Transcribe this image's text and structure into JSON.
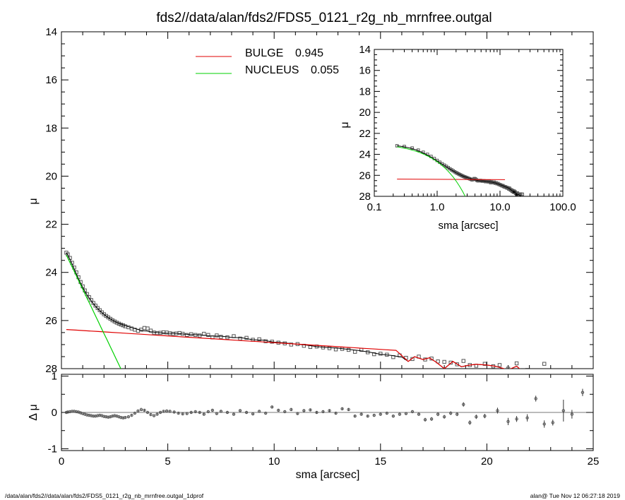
{
  "title": "fds2//data/alan/fds2/FDS5_0121_r2g_nb_mrnfree.outgal",
  "footer": {
    "left": "/data/alan/fds2//data/alan/fds2/FDS5_0121_r2g_nb_mrnfree.outgal_1dprof",
    "right": "alan@  Tue Nov 12 06:27:18 2019"
  },
  "colors": {
    "bulge": "#e00000",
    "nucleus": "#00d000",
    "data": "#555555"
  },
  "chart_data": [
    {
      "type": "scatter",
      "name": "main",
      "xlabel": "",
      "ylabel": "μ",
      "xlim": [
        0,
        25
      ],
      "ylim": [
        28,
        14
      ],
      "yticks": [
        "14",
        "16",
        "18",
        "20",
        "22",
        "24",
        "26",
        "28"
      ],
      "legend": [
        {
          "label": "BULGE",
          "value": "0.945",
          "color": "#e00000"
        },
        {
          "label": "NUCLEUS",
          "value": "0.055",
          "color": "#00d000"
        }
      ],
      "components": {
        "bulge_sersic": {
          "mu0": 26.36,
          "slope_per_arcsec": 0.056
        },
        "nucleus_exp": {
          "mu0": 22.85,
          "slope_per_arcsec": 1.845
        }
      },
      "observed_points": [
        [
          0.23,
          23.18
        ],
        [
          0.3,
          23.25
        ],
        [
          0.4,
          23.4
        ],
        [
          0.5,
          23.6
        ],
        [
          0.6,
          23.8
        ],
        [
          0.7,
          24.0
        ],
        [
          0.8,
          24.2
        ],
        [
          0.9,
          24.4
        ],
        [
          1.0,
          24.58
        ],
        [
          1.1,
          24.75
        ],
        [
          1.2,
          24.9
        ],
        [
          1.3,
          25.03
        ],
        [
          1.4,
          25.15
        ],
        [
          1.5,
          25.27
        ],
        [
          1.6,
          25.38
        ],
        [
          1.7,
          25.48
        ],
        [
          1.8,
          25.57
        ],
        [
          1.9,
          25.66
        ],
        [
          2.0,
          25.74
        ],
        [
          2.1,
          25.81
        ],
        [
          2.2,
          25.87
        ],
        [
          2.3,
          25.93
        ],
        [
          2.4,
          25.99
        ],
        [
          2.5,
          26.04
        ],
        [
          2.6,
          26.09
        ],
        [
          2.7,
          26.13
        ],
        [
          2.8,
          26.17
        ],
        [
          2.9,
          26.2
        ],
        [
          3.0,
          26.24
        ],
        [
          3.15,
          26.28
        ],
        [
          3.3,
          26.33
        ],
        [
          3.45,
          26.38
        ],
        [
          3.6,
          26.43
        ],
        [
          3.75,
          26.38
        ],
        [
          3.9,
          26.31
        ],
        [
          4.05,
          26.33
        ],
        [
          4.2,
          26.42
        ],
        [
          4.35,
          26.5
        ],
        [
          4.5,
          26.52
        ],
        [
          4.65,
          26.51
        ],
        [
          4.8,
          26.49
        ],
        [
          4.95,
          26.5
        ],
        [
          5.1,
          26.53
        ],
        [
          5.25,
          26.55
        ],
        [
          5.4,
          26.54
        ],
        [
          5.55,
          26.52
        ],
        [
          5.7,
          26.55
        ],
        [
          5.9,
          26.6
        ],
        [
          6.1,
          26.57
        ],
        [
          6.3,
          26.6
        ],
        [
          6.5,
          26.62
        ],
        [
          6.7,
          26.55
        ],
        [
          6.9,
          26.6
        ],
        [
          7.1,
          26.7
        ],
        [
          7.3,
          26.62
        ],
        [
          7.5,
          26.68
        ],
        [
          7.8,
          26.7
        ],
        [
          8.1,
          26.65
        ],
        [
          8.4,
          26.75
        ],
        [
          8.7,
          26.72
        ],
        [
          9.0,
          26.8
        ],
        [
          9.3,
          26.78
        ],
        [
          9.6,
          26.86
        ],
        [
          9.9,
          26.88
        ],
        [
          10.2,
          26.92
        ],
        [
          10.5,
          26.95
        ],
        [
          10.8,
          27.0
        ],
        [
          11.1,
          26.98
        ],
        [
          11.4,
          27.05
        ],
        [
          11.7,
          27.1
        ],
        [
          12.0,
          27.08
        ],
        [
          12.3,
          27.12
        ],
        [
          12.6,
          27.15
        ],
        [
          12.9,
          27.2
        ],
        [
          13.2,
          27.18
        ],
        [
          13.5,
          27.22
        ],
        [
          13.8,
          27.3
        ],
        [
          14.1,
          27.22
        ],
        [
          14.4,
          27.32
        ],
        [
          14.7,
          27.4
        ],
        [
          15.0,
          27.38
        ],
        [
          15.3,
          27.42
        ],
        [
          15.6,
          27.52
        ],
        [
          15.9,
          27.45
        ],
        [
          16.2,
          27.55
        ],
        [
          16.5,
          27.6
        ],
        [
          16.8,
          27.5
        ],
        [
          17.1,
          27.62
        ],
        [
          17.4,
          27.58
        ],
        [
          17.7,
          27.7
        ],
        [
          18.0,
          27.72
        ],
        [
          18.3,
          27.75
        ],
        [
          18.6,
          27.82
        ],
        [
          18.9,
          27.68
        ],
        [
          19.2,
          27.85
        ],
        [
          19.5,
          27.88
        ],
        [
          19.9,
          27.8
        ],
        [
          20.3,
          27.9
        ],
        [
          20.6,
          27.85
        ],
        [
          21.0,
          28.0
        ],
        [
          21.4,
          27.78
        ],
        [
          21.9,
          28.05
        ],
        [
          22.7,
          27.8
        ]
      ],
      "model_points": [
        [
          0.23,
          23.18
        ],
        [
          0.3,
          23.28
        ],
        [
          0.4,
          23.45
        ],
        [
          0.5,
          23.65
        ],
        [
          0.6,
          23.86
        ],
        [
          0.7,
          24.06
        ],
        [
          0.8,
          24.26
        ],
        [
          0.9,
          24.45
        ],
        [
          1.0,
          24.62
        ],
        [
          1.1,
          24.78
        ],
        [
          1.2,
          24.93
        ],
        [
          1.3,
          25.06
        ],
        [
          1.4,
          25.18
        ],
        [
          1.5,
          25.3
        ],
        [
          1.6,
          25.4
        ],
        [
          1.7,
          25.5
        ],
        [
          1.8,
          25.59
        ],
        [
          1.9,
          25.67
        ],
        [
          2.0,
          25.75
        ],
        [
          2.2,
          25.88
        ],
        [
          2.4,
          25.99
        ],
        [
          2.6,
          26.08
        ],
        [
          2.8,
          26.15
        ],
        [
          3.0,
          26.21
        ],
        [
          3.2,
          26.27
        ],
        [
          3.4,
          26.32
        ],
        [
          3.6,
          26.37
        ],
        [
          3.8,
          26.42
        ],
        [
          4.0,
          26.44
        ],
        [
          4.2,
          26.47
        ],
        [
          4.5,
          26.5
        ],
        [
          5.0,
          26.53
        ],
        [
          5.5,
          26.54
        ],
        [
          6.0,
          26.58
        ],
        [
          6.5,
          26.6
        ],
        [
          7.0,
          26.64
        ],
        [
          7.5,
          26.65
        ],
        [
          8.0,
          26.7
        ],
        [
          8.5,
          26.72
        ],
        [
          9.0,
          26.8
        ],
        [
          9.5,
          26.82
        ],
        [
          10.0,
          26.9
        ],
        [
          10.5,
          26.93
        ],
        [
          11.0,
          26.98
        ],
        [
          11.5,
          27.02
        ],
        [
          12.0,
          27.08
        ],
        [
          12.5,
          27.12
        ],
        [
          13.0,
          27.15
        ],
        [
          13.5,
          27.2
        ],
        [
          14.0,
          27.25
        ],
        [
          14.5,
          27.32
        ],
        [
          15.0,
          27.4
        ],
        [
          15.5,
          27.45
        ],
        [
          16.0,
          27.52
        ],
        [
          16.3,
          27.7
        ],
        [
          16.6,
          27.5
        ],
        [
          17.0,
          27.62
        ],
        [
          17.3,
          27.55
        ],
        [
          17.6,
          27.72
        ],
        [
          18.0,
          28.0
        ],
        [
          18.4,
          27.7
        ],
        [
          18.8,
          27.92
        ],
        [
          19.2,
          27.85
        ],
        [
          19.5,
          27.82
        ],
        [
          20.0,
          27.85
        ],
        [
          20.4,
          27.9
        ],
        [
          21.0,
          28.05
        ],
        [
          21.4,
          27.9
        ],
        [
          21.6,
          28.05
        ]
      ]
    },
    {
      "type": "scatter",
      "name": "inset",
      "xlabel": "sma [arcsec]",
      "ylabel": "μ",
      "xscale": "log",
      "xlim": [
        0.1,
        100
      ],
      "ylim": [
        28,
        14
      ],
      "xticks": [
        "0.1",
        "1.0",
        "10.0",
        "100.0"
      ],
      "yticks": [
        "14",
        "16",
        "18",
        "20",
        "22",
        "24",
        "26",
        "28"
      ],
      "bulge_level": 26.36
    },
    {
      "type": "scatter",
      "name": "residual",
      "xlabel": "sma [arcsec]",
      "ylabel": "Δ μ",
      "xlim": [
        0,
        25
      ],
      "ylim": [
        -1.05,
        1.05
      ],
      "xticks": [
        "0",
        "5",
        "10",
        "15",
        "20",
        "25"
      ],
      "yticks": [
        "1",
        "0",
        "-1"
      ],
      "points": [
        [
          0.23,
          0.0,
          0.02
        ],
        [
          0.3,
          0.01,
          0.02
        ],
        [
          0.4,
          0.02,
          0.02
        ],
        [
          0.5,
          0.03,
          0.02
        ],
        [
          0.6,
          0.03,
          0.02
        ],
        [
          0.7,
          0.02,
          0.02
        ],
        [
          0.8,
          0.01,
          0.02
        ],
        [
          0.9,
          -0.01,
          0.02
        ],
        [
          1.0,
          -0.03,
          0.02
        ],
        [
          1.1,
          -0.05,
          0.02
        ],
        [
          1.2,
          -0.07,
          0.02
        ],
        [
          1.3,
          -0.08,
          0.02
        ],
        [
          1.4,
          -0.09,
          0.02
        ],
        [
          1.5,
          -0.1,
          0.02
        ],
        [
          1.6,
          -0.1,
          0.02
        ],
        [
          1.7,
          -0.09,
          0.02
        ],
        [
          1.8,
          -0.08,
          0.02
        ],
        [
          1.9,
          -0.09,
          0.02
        ],
        [
          2.0,
          -0.11,
          0.02
        ],
        [
          2.1,
          -0.12,
          0.02
        ],
        [
          2.2,
          -0.13,
          0.02
        ],
        [
          2.3,
          -0.12,
          0.02
        ],
        [
          2.4,
          -0.1,
          0.02
        ],
        [
          2.5,
          -0.09,
          0.02
        ],
        [
          2.6,
          -0.1,
          0.02
        ],
        [
          2.7,
          -0.12,
          0.02
        ],
        [
          2.8,
          -0.14,
          0.02
        ],
        [
          2.9,
          -0.15,
          0.02
        ],
        [
          3.0,
          -0.14,
          0.02
        ],
        [
          3.15,
          -0.12,
          0.02
        ],
        [
          3.3,
          -0.08,
          0.02
        ],
        [
          3.45,
          -0.02,
          0.02
        ],
        [
          3.6,
          0.04,
          0.02
        ],
        [
          3.75,
          0.08,
          0.02
        ],
        [
          3.9,
          0.06,
          0.02
        ],
        [
          4.05,
          0.0,
          0.02
        ],
        [
          4.2,
          -0.06,
          0.02
        ],
        [
          4.35,
          -0.09,
          0.02
        ],
        [
          4.5,
          -0.05,
          0.02
        ],
        [
          4.65,
          0.0,
          0.02
        ],
        [
          4.8,
          0.03,
          0.02
        ],
        [
          4.95,
          0.04,
          0.02
        ],
        [
          5.1,
          0.03,
          0.02
        ],
        [
          5.3,
          0.01,
          0.02
        ],
        [
          5.5,
          -0.02,
          0.02
        ],
        [
          5.7,
          -0.04,
          0.02
        ],
        [
          5.9,
          -0.03,
          0.02
        ],
        [
          6.1,
          0.0,
          0.02
        ],
        [
          6.3,
          0.02,
          0.02
        ],
        [
          6.5,
          0.0,
          0.02
        ],
        [
          6.7,
          -0.05,
          0.03
        ],
        [
          6.9,
          0.02,
          0.03
        ],
        [
          7.1,
          0.06,
          0.03
        ],
        [
          7.3,
          -0.03,
          0.03
        ],
        [
          7.5,
          0.03,
          0.03
        ],
        [
          7.8,
          0.0,
          0.03
        ],
        [
          8.1,
          -0.05,
          0.03
        ],
        [
          8.4,
          0.05,
          0.03
        ],
        [
          8.7,
          0.0,
          0.03
        ],
        [
          9.0,
          -0.04,
          0.03
        ],
        [
          9.3,
          0.03,
          0.03
        ],
        [
          9.6,
          -0.02,
          0.03
        ],
        [
          9.9,
          0.15,
          0.03
        ],
        [
          10.2,
          0.06,
          0.03
        ],
        [
          10.5,
          0.02,
          0.03
        ],
        [
          10.8,
          0.08,
          0.03
        ],
        [
          11.1,
          -0.03,
          0.03
        ],
        [
          11.4,
          0.05,
          0.03
        ],
        [
          11.7,
          0.07,
          0.03
        ],
        [
          12.0,
          0.0,
          0.03
        ],
        [
          12.3,
          0.02,
          0.03
        ],
        [
          12.6,
          0.05,
          0.03
        ],
        [
          12.9,
          -0.02,
          0.03
        ],
        [
          13.2,
          0.1,
          0.03
        ],
        [
          13.5,
          0.08,
          0.03
        ],
        [
          13.8,
          -0.1,
          0.03
        ],
        [
          14.1,
          -0.05,
          0.03
        ],
        [
          14.4,
          -0.1,
          0.03
        ],
        [
          14.7,
          -0.08,
          0.03
        ],
        [
          15.0,
          -0.05,
          0.04
        ],
        [
          15.3,
          -0.02,
          0.04
        ],
        [
          15.6,
          -0.1,
          0.04
        ],
        [
          15.9,
          -0.05,
          0.04
        ],
        [
          16.2,
          -0.03,
          0.04
        ],
        [
          16.5,
          0.02,
          0.04
        ],
        [
          16.8,
          -0.05,
          0.04
        ],
        [
          17.1,
          -0.2,
          0.05
        ],
        [
          17.4,
          -0.18,
          0.05
        ],
        [
          17.7,
          -0.05,
          0.05
        ],
        [
          18.0,
          -0.12,
          0.05
        ],
        [
          18.3,
          -0.02,
          0.05
        ],
        [
          18.6,
          -0.05,
          0.05
        ],
        [
          18.9,
          0.22,
          0.06
        ],
        [
          19.2,
          -0.28,
          0.06
        ],
        [
          19.5,
          -0.12,
          0.06
        ],
        [
          19.9,
          -0.1,
          0.06
        ],
        [
          20.5,
          0.05,
          0.08
        ],
        [
          21.0,
          -0.25,
          0.1
        ],
        [
          21.4,
          -0.18,
          0.08
        ],
        [
          21.9,
          -0.15,
          0.1
        ],
        [
          22.3,
          0.38,
          0.08
        ],
        [
          22.7,
          -0.32,
          0.1
        ],
        [
          23.1,
          -0.28,
          0.08
        ],
        [
          23.6,
          0.05,
          0.3
        ],
        [
          24.0,
          -0.05,
          0.12
        ],
        [
          24.5,
          0.55,
          0.1
        ]
      ]
    }
  ]
}
